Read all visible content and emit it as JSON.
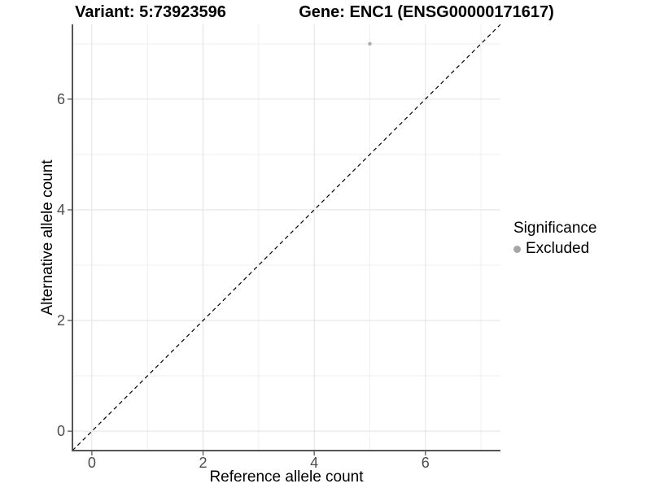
{
  "chart_data": {
    "type": "scatter",
    "titles": {
      "left": "Variant: 5:73923596",
      "right": "Gene: ENC1 (ENSG00000171617)"
    },
    "xlabel": "Reference allele count",
    "ylabel": "Alternative allele count",
    "xlim": [
      -0.35,
      7.35
    ],
    "ylim": [
      -0.35,
      7.35
    ],
    "x_ticks": [
      0,
      2,
      4,
      6
    ],
    "y_ticks": [
      0,
      2,
      4,
      6
    ],
    "grid": {
      "major": [
        0,
        2,
        4,
        6
      ],
      "minor": [
        1,
        3,
        5,
        7
      ]
    },
    "series": [
      {
        "name": "Excluded",
        "color": "#aeaeae",
        "points": [
          {
            "x": 5,
            "y": 7
          }
        ]
      }
    ],
    "reference_line": {
      "equation": "y = x",
      "style": "dashed",
      "color": "#000000"
    },
    "legend": {
      "title": "Significance",
      "position": "right",
      "items": [
        {
          "label": "Excluded",
          "color": "#a6a6a6"
        }
      ]
    },
    "style": {
      "background": "#ffffff",
      "grid_major_color": "#e2e2e2",
      "grid_minor_color": "#efefef",
      "axis_line_color": "#555555",
      "tick_color": "#6e6e6e",
      "tick_label_color": "#4d4d4d",
      "axis_title_color": "#000000"
    }
  }
}
